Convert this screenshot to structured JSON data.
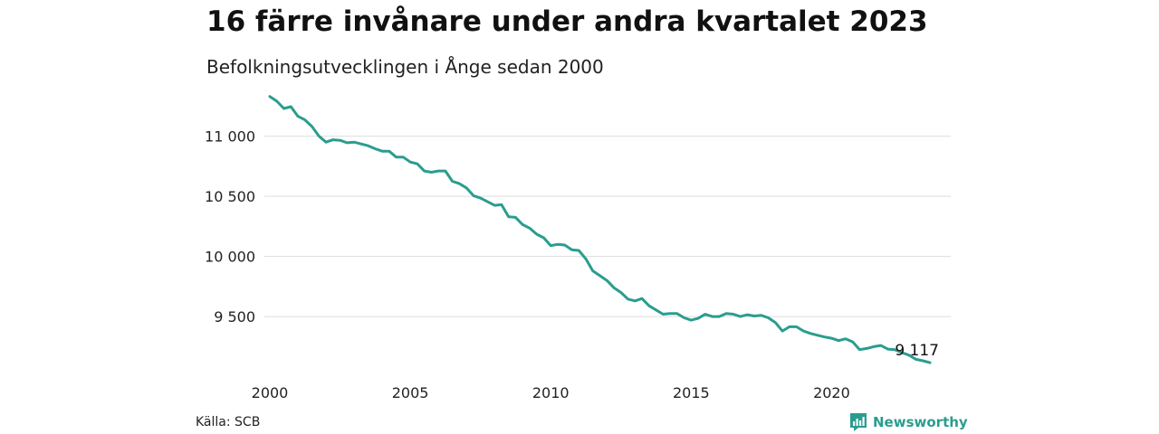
{
  "header": {
    "title": "16 färre invånare under andra kvartalet 2023",
    "subtitle": "Befolkningsutvecklingen i Ånge sedan 2000"
  },
  "footer": {
    "source": "Källa: SCB",
    "brand": "Newsworthy",
    "brand_icon": "newsworthy-logo-icon"
  },
  "colors": {
    "line": "#2a9d8f",
    "grid": "#dddddd",
    "text": "#111111"
  },
  "chart_data": {
    "type": "line",
    "xlabel": "",
    "ylabel": "",
    "xlim": [
      2000,
      2023.5
    ],
    "ylim": [
      9050,
      11350
    ],
    "x_ticks": [
      2000,
      2005,
      2010,
      2015,
      2020
    ],
    "x_tick_labels": [
      "2000",
      "2005",
      "2010",
      "2015",
      "2020"
    ],
    "y_ticks": [
      9500,
      10000,
      10500,
      11000
    ],
    "y_tick_labels": [
      "9 500",
      "10 000",
      "10 500",
      "11 000"
    ],
    "grid": true,
    "last_value_label": "9 117",
    "series": [
      {
        "x": [
          2000.0,
          2000.25,
          2000.5,
          2000.75,
          2001.0,
          2001.25,
          2001.5,
          2001.75,
          2002.0,
          2002.25,
          2002.5,
          2002.75,
          2003.0,
          2003.25,
          2003.5,
          2003.75,
          2004.0,
          2004.25,
          2004.5,
          2004.75,
          2005.0,
          2005.25,
          2005.5,
          2005.75,
          2006.0,
          2006.25,
          2006.5,
          2006.75,
          2007.0,
          2007.25,
          2007.5,
          2007.75,
          2008.0,
          2008.25,
          2008.5,
          2008.75,
          2009.0,
          2009.25,
          2009.5,
          2009.75,
          2010.0,
          2010.25,
          2010.5,
          2010.75,
          2011.0,
          2011.25,
          2011.5,
          2011.75,
          2012.0,
          2012.25,
          2012.5,
          2012.75,
          2013.0,
          2013.25,
          2013.5,
          2013.75,
          2014.0,
          2014.25,
          2014.5,
          2014.75,
          2015.0,
          2015.25,
          2015.5,
          2015.75,
          2016.0,
          2016.25,
          2016.5,
          2016.75,
          2017.0,
          2017.25,
          2017.5,
          2017.75,
          2018.0,
          2018.25,
          2018.5,
          2018.75,
          2019.0,
          2019.25,
          2019.5,
          2019.75,
          2020.0,
          2020.25,
          2020.5,
          2020.75,
          2021.0,
          2021.25,
          2021.5,
          2021.75,
          2022.0,
          2022.25,
          2022.5,
          2022.75,
          2023.0,
          2023.25,
          2023.5
        ],
        "y": [
          11330,
          11290,
          11230,
          11245,
          11165,
          11135,
          11080,
          11000,
          10950,
          10970,
          10965,
          10945,
          10950,
          10935,
          10920,
          10895,
          10875,
          10875,
          10825,
          10825,
          10785,
          10770,
          10710,
          10700,
          10710,
          10710,
          10625,
          10605,
          10570,
          10505,
          10485,
          10455,
          10425,
          10430,
          10330,
          10325,
          10265,
          10235,
          10185,
          10155,
          10090,
          10100,
          10095,
          10055,
          10050,
          9980,
          9880,
          9840,
          9800,
          9740,
          9700,
          9645,
          9630,
          9650,
          9590,
          9555,
          9520,
          9525,
          9525,
          9490,
          9470,
          9485,
          9520,
          9500,
          9500,
          9525,
          9520,
          9500,
          9515,
          9505,
          9510,
          9490,
          9450,
          9380,
          9415,
          9415,
          9380,
          9360,
          9345,
          9330,
          9320,
          9300,
          9315,
          9290,
          9225,
          9235,
          9250,
          9260,
          9230,
          9225,
          9200,
          9180,
          9145,
          9133,
          9117
        ]
      }
    ]
  }
}
